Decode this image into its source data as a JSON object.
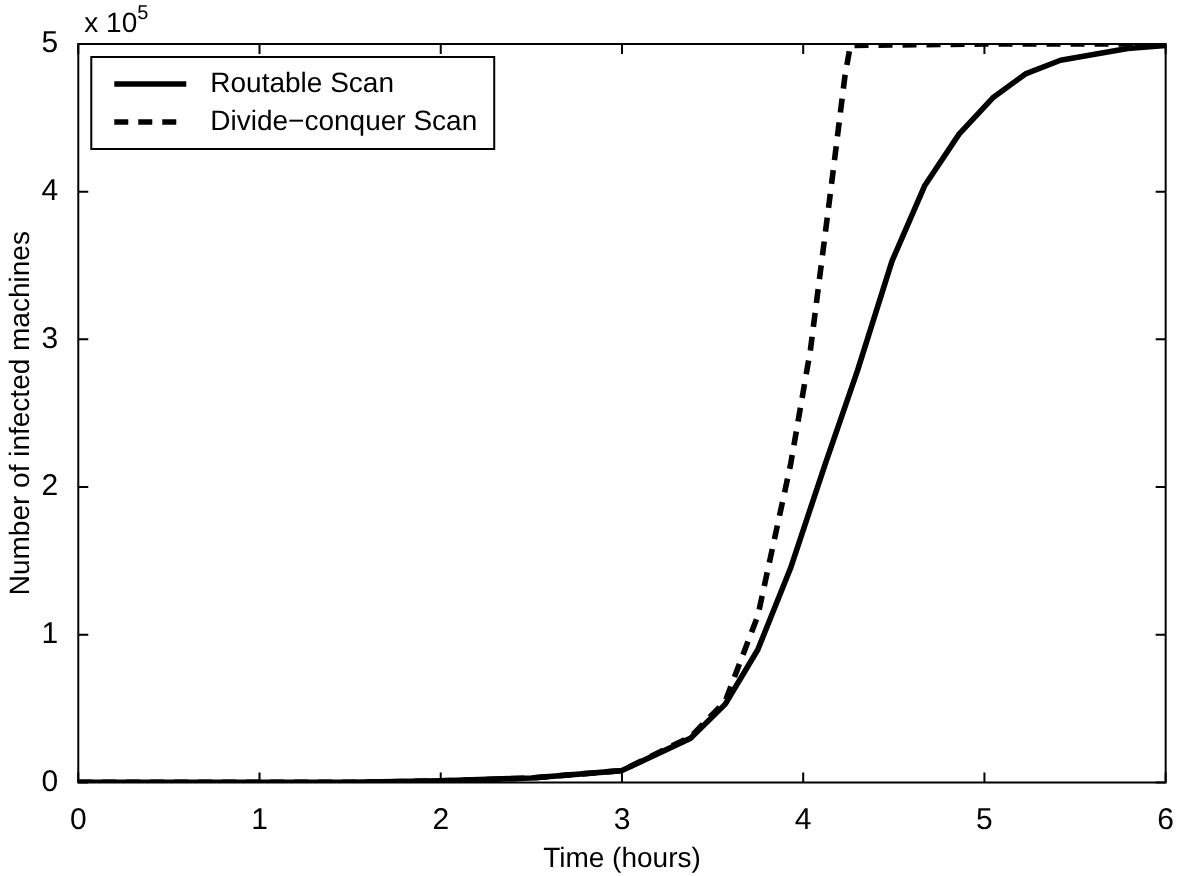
{
  "chart_data": {
    "type": "line",
    "xlabel": "Time (hours)",
    "ylabel": "Number of infected machines",
    "annotations": [
      "x 10$^{5}$"
    ],
    "xlim": [
      0,
      6
    ],
    "xticks": [
      0,
      1,
      2,
      3,
      4,
      5,
      6
    ],
    "ylim": [
      0,
      5
    ],
    "yticks": [
      0,
      1,
      2,
      3,
      4,
      5
    ],
    "grid": false,
    "legend": "top left",
    "marker": "none",
    "series": [
      {
        "name": "Routable Scan",
        "color": "#000000",
        "line_style": "solid",
        "x": [
          0,
          1,
          1.5,
          2,
          2.5,
          3,
          3.38,
          3.57,
          3.75,
          3.93,
          4.12,
          4.3,
          4.49,
          4.67,
          4.86,
          5.05,
          5.23,
          5.42,
          5.79,
          6
        ],
        "values": [
          0,
          0,
          0,
          0.01,
          0.03,
          0.08,
          0.3,
          0.53,
          0.9,
          1.45,
          2.15,
          2.79,
          3.53,
          4.04,
          4.39,
          4.64,
          4.8,
          4.89,
          4.97,
          4.99
        ]
      },
      {
        "name": "Divide−conquer Scan",
        "color": "#000000",
        "line_style": "dashed",
        "x": [
          0,
          1,
          1.5,
          2,
          2.5,
          3,
          3.38,
          3.57,
          3.75,
          3.93,
          4.04,
          4.15,
          4.23,
          4.26,
          5,
          6
        ],
        "values": [
          0,
          0,
          0,
          0.01,
          0.03,
          0.08,
          0.31,
          0.55,
          1.13,
          2.15,
          2.93,
          3.99,
          4.78,
          4.99,
          5,
          5
        ]
      }
    ]
  }
}
